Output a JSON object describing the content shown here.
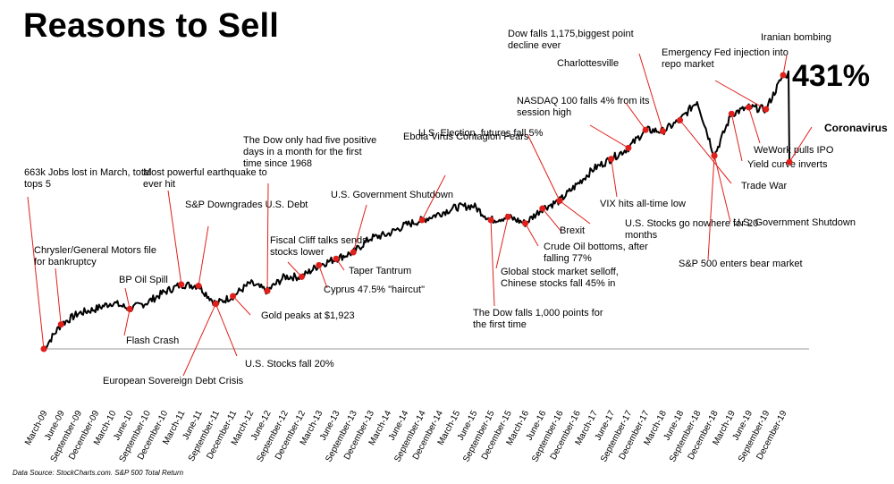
{
  "title": "Reasons to Sell",
  "total_return_label": "431%",
  "source_note": "Data Source: StockCharts.com. S&P 500 Total Return",
  "chart_data": {
    "type": "line",
    "title": "Reasons to Sell",
    "xlabel": "",
    "ylabel": "",
    "series_color": "#000000",
    "marker_color": "#e0201b",
    "grid": false,
    "x_tick_labels": [
      "March-09",
      "June-09",
      "September-09",
      "December-09",
      "March-10",
      "June-10",
      "September-10",
      "December-10",
      "March-11",
      "June-11",
      "September-11",
      "December-11",
      "March-12",
      "June-12",
      "September-12",
      "December-12",
      "March-13",
      "June-13",
      "September-13",
      "December-13",
      "March-14",
      "June-14",
      "September-14",
      "December-14",
      "March-15",
      "June-15",
      "September-15",
      "December-15",
      "March-16",
      "June-16",
      "September-16",
      "December-16",
      "March-17",
      "June-17",
      "September-17",
      "December-17",
      "March-18",
      "June-18",
      "September-18",
      "December-18",
      "March-19",
      "June-19",
      "September-19",
      "December-19"
    ],
    "series": [
      {
        "values": [
          0.0,
          0.38,
          0.55,
          0.62,
          0.72,
          0.62,
          0.72,
          0.88,
          1.0,
          0.98,
          0.7,
          0.82,
          1.02,
          0.9,
          1.12,
          1.12,
          1.3,
          1.4,
          1.5,
          1.72,
          1.78,
          1.92,
          2.0,
          2.1,
          2.2,
          2.22,
          2.0,
          2.05,
          1.95,
          2.18,
          2.3,
          2.55,
          2.8,
          2.95,
          3.12,
          3.4,
          3.38,
          3.55,
          3.85,
          3.0,
          3.65,
          3.75,
          3.72,
          4.25
        ],
        "end_values": [
          4.31,
          2.9
        ]
      }
    ],
    "events": [
      {
        "label": "663k Jobs lost in March, total tops 5",
        "index": 0
      },
      {
        "label": "Chrysler/General Motors file for bankruptcy",
        "index": 1
      },
      {
        "label": "BP Oil Spill",
        "index": 5
      },
      {
        "label": "Flash Crash",
        "index": 5
      },
      {
        "label": "Most powerful earthquake to ever hit",
        "index": 8
      },
      {
        "label": "S&P Downgrades U.S. Debt",
        "index": 9
      },
      {
        "label": "European Sovereign Debt Crisis",
        "index": 10
      },
      {
        "label": "U.S. Stocks fall 20%",
        "index": 10
      },
      {
        "label": "Gold peaks at $1,923",
        "index": 11
      },
      {
        "label": "The Dow only had five positive days in a month for the first time since 1968",
        "index": 13
      },
      {
        "label": "Fiscal Cliff talks sends stocks lower",
        "index": 15
      },
      {
        "label": "Cyprus 47.5% \"haircut\"",
        "index": 16
      },
      {
        "label": "Taper Tantrum",
        "index": 17
      },
      {
        "label": "U.S. Government Shutdown",
        "index": 18
      },
      {
        "label": "Ebola Virus Contagion Fears",
        "index": 22
      },
      {
        "label": "The Dow falls 1,000 points for the first time",
        "index": 26
      },
      {
        "label": "Global stock market selloff, Chinese stocks fall 45% in",
        "index": 27
      },
      {
        "label": "Crude Oil bottoms, after falling 77%",
        "index": 28
      },
      {
        "label": "Brexit",
        "index": 29
      },
      {
        "label": "U.S. Stocks go nowhere for 20 months",
        "index": 30
      },
      {
        "label": "U.S. Election, futures fall 5%",
        "index": 30
      },
      {
        "label": "VIX hits all-time low",
        "index": 33
      },
      {
        "label": "NASDAQ 100 falls 4% from its  session high",
        "index": 34
      },
      {
        "label": "Charlottesville",
        "index": 35
      },
      {
        "label": "Dow falls 1,175,biggest point decline ever",
        "index": 36
      },
      {
        "label": "Trade War",
        "index": 37
      },
      {
        "label": "S&P 500 enters bear market",
        "index": 39
      },
      {
        "label": "U.S. Government Shutdown",
        "index": 39
      },
      {
        "label": "Yield curve inverts",
        "index": 40
      },
      {
        "label": "WeWork pulls IPO",
        "index": 41
      },
      {
        "label": "Emergency Fed injection into repo market",
        "index": 42
      },
      {
        "label": "Iranian bombing",
        "index": 43
      },
      {
        "label": "Coronavirus",
        "index": 43
      }
    ]
  }
}
